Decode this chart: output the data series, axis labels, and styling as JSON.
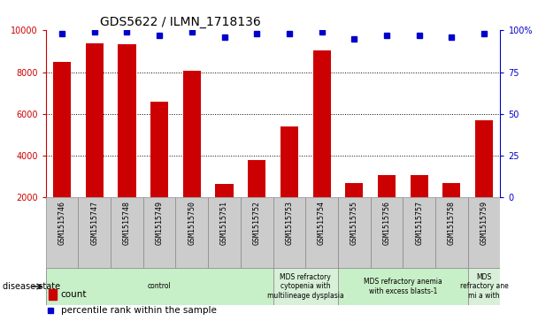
{
  "title": "GDS5622 / ILMN_1718136",
  "samples": [
    "GSM1515746",
    "GSM1515747",
    "GSM1515748",
    "GSM1515749",
    "GSM1515750",
    "GSM1515751",
    "GSM1515752",
    "GSM1515753",
    "GSM1515754",
    "GSM1515755",
    "GSM1515756",
    "GSM1515757",
    "GSM1515758",
    "GSM1515759"
  ],
  "counts": [
    8500,
    9400,
    9350,
    6600,
    8050,
    2650,
    3800,
    5400,
    9050,
    2700,
    3050,
    3050,
    2700,
    5700
  ],
  "percentile_ranks": [
    98,
    99,
    99,
    97,
    99,
    96,
    98,
    98,
    99,
    95,
    97,
    97,
    96,
    98
  ],
  "ylim_left": [
    2000,
    10000
  ],
  "ylim_right": [
    0,
    100
  ],
  "yticks_left": [
    2000,
    4000,
    6000,
    8000,
    10000
  ],
  "yticks_right": [
    0,
    25,
    50,
    75,
    100
  ],
  "bar_color": "#cc0000",
  "dot_color": "#0000cc",
  "grid_lines": [
    4000,
    6000,
    8000
  ],
  "disease_groups": [
    {
      "label": "control",
      "start": 0,
      "end": 7,
      "color": "#c8f0c8"
    },
    {
      "label": "MDS refractory\ncytopenia with\nmultilineage dysplasia",
      "start": 7,
      "end": 9,
      "color": "#d8f0d8"
    },
    {
      "label": "MDS refractory anemia\nwith excess blasts-1",
      "start": 9,
      "end": 13,
      "color": "#c8f0c8"
    },
    {
      "label": "MDS\nrefractory ane\nmi a with",
      "start": 13,
      "end": 14,
      "color": "#d8f0d8"
    }
  ],
  "disease_state_label": "disease state",
  "legend_count_label": "count",
  "legend_percentile_label": "percentile rank within the sample",
  "bar_width": 0.55,
  "tick_label_fontsize": 6,
  "title_fontsize": 10,
  "sample_box_color": "#cccccc",
  "sample_box_border": "#888888"
}
